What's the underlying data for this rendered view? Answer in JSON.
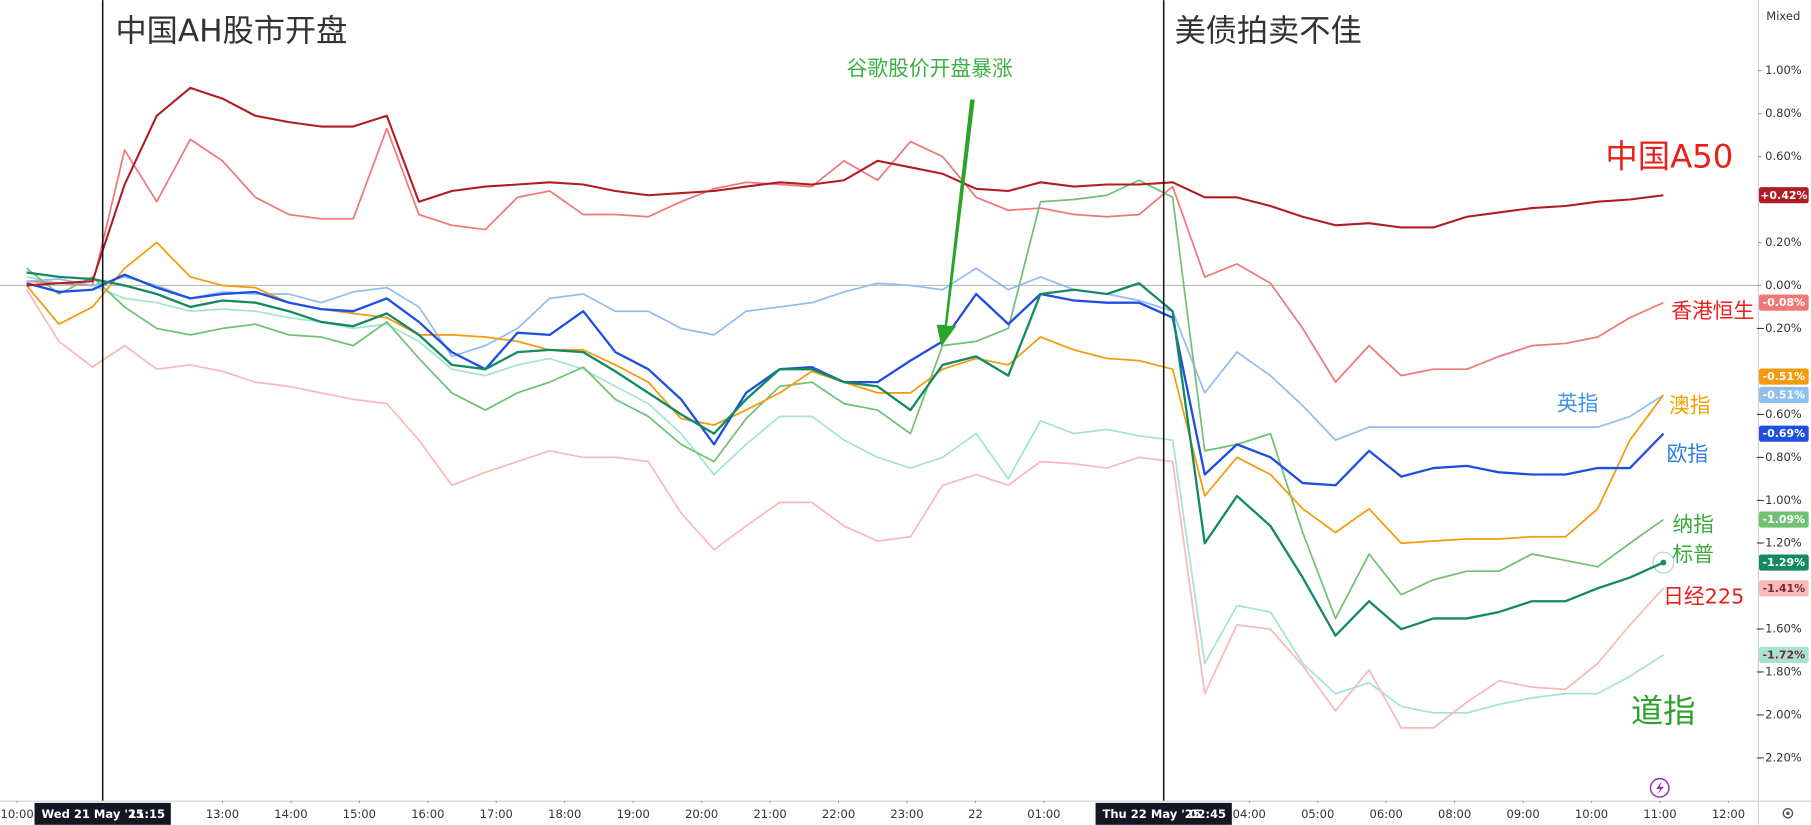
{
  "chart_data": {
    "type": "line",
    "corner_label": "Mixed",
    "x": [
      0.14,
      0.61,
      1.1,
      1.57,
      2.04,
      2.53,
      3.0,
      3.48,
      3.97,
      4.44,
      4.91,
      5.4,
      5.87,
      6.35,
      6.84,
      7.31,
      7.78,
      8.27,
      8.74,
      9.22,
      9.7,
      10.18,
      10.65,
      11.14,
      11.61,
      12.08,
      12.57,
      13.05,
      13.52,
      14.01,
      14.48,
      14.95,
      15.44,
      15.92,
      16.39,
      16.88,
      17.35,
      17.82,
      18.31,
      18.78,
      19.26,
      19.75,
      20.22,
      20.69,
      21.18,
      21.65,
      22.13,
      22.62,
      23.09,
      23.56,
      24.05
    ],
    "xlim": [
      -0.25,
      25.43
    ],
    "xticks": [
      {
        "value": 0,
        "label": "10:00"
      },
      {
        "value": 3,
        "label": "13:00"
      },
      {
        "value": 4,
        "label": "14:00"
      },
      {
        "value": 5,
        "label": "15:00"
      },
      {
        "value": 6,
        "label": "16:00"
      },
      {
        "value": 7,
        "label": "17:00"
      },
      {
        "value": 8,
        "label": "18:00"
      },
      {
        "value": 9,
        "label": "19:00"
      },
      {
        "value": 10,
        "label": "20:00"
      },
      {
        "value": 11,
        "label": "21:00"
      },
      {
        "value": 12,
        "label": "22:00"
      },
      {
        "value": 13,
        "label": "23:00"
      },
      {
        "value": 14,
        "label": "22"
      },
      {
        "value": 15,
        "label": "01:00"
      },
      {
        "value": 18,
        "label": "04:00"
      },
      {
        "value": 19,
        "label": "05:00"
      },
      {
        "value": 20,
        "label": "06:00"
      },
      {
        "value": 21,
        "label": "08:00"
      },
      {
        "value": 22,
        "label": "09:00"
      },
      {
        "value": 23,
        "label": "10:00"
      },
      {
        "value": 24,
        "label": "11:00"
      },
      {
        "value": 25,
        "label": "12:00"
      }
    ],
    "ylim": [
      -2.398,
      1.328
    ],
    "yticks": [
      {
        "value": 1.0,
        "label": "1.00%"
      },
      {
        "value": 0.8,
        "label": "0.80%"
      },
      {
        "value": 0.6,
        "label": "0.60%"
      },
      {
        "value": 0.2,
        "label": "0.20%"
      },
      {
        "value": 0,
        "label": "0.00%"
      },
      {
        "value": -0.2,
        "label": "−0.20%"
      },
      {
        "value": -0.6,
        "label": "−0.60%"
      },
      {
        "value": -0.8,
        "label": "−0.80%"
      },
      {
        "value": -1.0,
        "label": "−1.00%"
      },
      {
        "value": -1.2,
        "label": "−1.20%"
      },
      {
        "value": -1.6,
        "label": "−1.60%"
      },
      {
        "value": -1.8,
        "label": "−1.80%"
      },
      {
        "value": -2.0,
        "label": "−2.00%"
      },
      {
        "value": -2.2,
        "label": "−2.20%"
      }
    ],
    "grid": false,
    "event_lines": [
      {
        "x": 1.25,
        "date": "Wed 21 May '25",
        "time": "11:15",
        "note": "中国AH股市开盘"
      },
      {
        "x": 16.75,
        "date": "Thu 22 May '25",
        "time": "02:45",
        "note": "美债拍卖不佳"
      }
    ],
    "arrow_note": "谷歌股价开盘暴涨",
    "series": [
      {
        "name": "道指",
        "color": "#a6e3d5",
        "label_color": "#2ea02e",
        "end_label": "-1.72%",
        "values": [
          0.04,
          0.01,
          0,
          -0.06,
          -0.08,
          -0.12,
          -0.11,
          -0.12,
          -0.15,
          -0.17,
          -0.2,
          -0.18,
          -0.26,
          -0.39,
          -0.42,
          -0.37,
          -0.34,
          -0.39,
          -0.47,
          -0.55,
          -0.69,
          -0.88,
          -0.74,
          -0.61,
          -0.61,
          -0.72,
          -0.8,
          -0.85,
          -0.8,
          -0.69,
          -0.9,
          -0.63,
          -0.69,
          -0.67,
          -0.7,
          -0.72,
          -1.76,
          -1.49,
          -1.52,
          -1.76,
          -1.9,
          -1.85,
          -1.96,
          -1.99,
          -1.99,
          -1.95,
          -1.92,
          -1.9,
          -1.9,
          -1.82,
          -1.72
        ]
      },
      {
        "name": "日经225",
        "color": "#f9b9b9",
        "label_color": "#e8201a",
        "end_label": "-1.41%",
        "values": [
          -0.02,
          -0.26,
          -0.38,
          -0.28,
          -0.39,
          -0.37,
          -0.4,
          -0.45,
          -0.47,
          -0.5,
          -0.53,
          -0.55,
          -0.72,
          -0.93,
          -0.87,
          -0.82,
          -0.77,
          -0.8,
          -0.8,
          -0.82,
          -1.06,
          -1.23,
          -1.12,
          -1.01,
          -1.01,
          -1.12,
          -1.19,
          -1.17,
          -0.93,
          -0.88,
          -0.93,
          -0.82,
          -0.83,
          -0.85,
          -0.8,
          -0.82,
          -1.9,
          -1.58,
          -1.6,
          -1.77,
          -1.98,
          -1.79,
          -2.06,
          -2.06,
          -1.94,
          -1.84,
          -1.87,
          -1.88,
          -1.76,
          -1.58,
          -1.41
        ]
      },
      {
        "name": "香港恒生",
        "color": "#f07878",
        "label_color": "#e8201a",
        "end_label": "-0.08%",
        "values": [
          0.02,
          0.01,
          0,
          0.63,
          0.39,
          0.68,
          0.58,
          0.41,
          0.33,
          0.31,
          0.31,
          0.73,
          0.33,
          0.28,
          0.26,
          0.41,
          0.44,
          0.33,
          0.33,
          0.32,
          0.39,
          0.45,
          0.48,
          0.47,
          0.46,
          0.58,
          0.49,
          0.67,
          0.6,
          0.41,
          0.35,
          0.36,
          0.33,
          0.32,
          0.33,
          0.46,
          0.04,
          0.1,
          0.01,
          -0.2,
          -0.45,
          -0.28,
          -0.42,
          -0.39,
          -0.39,
          -0.33,
          -0.28,
          -0.27,
          -0.24,
          -0.15,
          -0.08
        ]
      },
      {
        "name": "英指",
        "color": "#8fbff0",
        "label_color": "#3e94e6",
        "end_label": "-0.51%",
        "values": [
          0.02,
          0.03,
          0,
          0.04,
          0,
          -0.06,
          -0.03,
          -0.04,
          -0.04,
          -0.08,
          -0.03,
          -0.01,
          -0.1,
          -0.33,
          -0.28,
          -0.2,
          -0.06,
          -0.04,
          -0.12,
          -0.12,
          -0.2,
          -0.23,
          -0.12,
          -0.1,
          -0.08,
          -0.03,
          0.01,
          0,
          -0.02,
          0.08,
          -0.02,
          0.04,
          -0.02,
          -0.04,
          -0.07,
          -0.12,
          -0.5,
          -0.31,
          -0.42,
          -0.56,
          -0.72,
          -0.66,
          -0.66,
          -0.66,
          -0.66,
          -0.66,
          -0.66,
          -0.66,
          -0.66,
          -0.61,
          -0.51
        ]
      },
      {
        "name": "纳指",
        "color": "#72c172",
        "label_color": "#3aa83a",
        "end_label": "-1.09%",
        "values": [
          0.08,
          -0.04,
          0.04,
          -0.1,
          -0.2,
          -0.23,
          -0.2,
          -0.18,
          -0.23,
          -0.24,
          -0.28,
          -0.17,
          -0.34,
          -0.5,
          -0.58,
          -0.5,
          -0.45,
          -0.38,
          -0.53,
          -0.61,
          -0.74,
          -0.82,
          -0.62,
          -0.47,
          -0.45,
          -0.55,
          -0.58,
          -0.69,
          -0.28,
          -0.26,
          -0.2,
          0.39,
          0.4,
          0.42,
          0.49,
          0.41,
          -0.77,
          -0.74,
          -0.69,
          -1.15,
          -1.55,
          -1.25,
          -1.44,
          -1.37,
          -1.33,
          -1.33,
          -1.25,
          -1.28,
          -1.31,
          -1.2,
          -1.09
        ]
      },
      {
        "name": "澳指",
        "color": "#f59a0c",
        "label_color": "#f0a000",
        "end_label": "-0.51%",
        "values": [
          0,
          -0.18,
          -0.1,
          0.08,
          0.2,
          0.04,
          0,
          -0.01,
          -0.08,
          -0.11,
          -0.13,
          -0.15,
          -0.23,
          -0.23,
          -0.24,
          -0.26,
          -0.3,
          -0.3,
          -0.37,
          -0.45,
          -0.62,
          -0.65,
          -0.58,
          -0.5,
          -0.4,
          -0.45,
          -0.5,
          -0.5,
          -0.39,
          -0.34,
          -0.37,
          -0.24,
          -0.3,
          -0.34,
          -0.35,
          -0.39,
          -0.98,
          -0.8,
          -0.88,
          -1.04,
          -1.15,
          -1.04,
          -1.2,
          -1.19,
          -1.18,
          -1.18,
          -1.17,
          -1.17,
          -1.04,
          -0.72,
          -0.51
        ]
      },
      {
        "name": "欧指",
        "color": "#1f4fe0",
        "label_color": "#2b7de0",
        "end_label": "-0.69%",
        "values": [
          0.01,
          -0.03,
          -0.02,
          0.05,
          -0.01,
          -0.06,
          -0.04,
          -0.03,
          -0.08,
          -0.11,
          -0.12,
          -0.06,
          -0.17,
          -0.31,
          -0.39,
          -0.22,
          -0.23,
          -0.12,
          -0.31,
          -0.39,
          -0.53,
          -0.74,
          -0.5,
          -0.39,
          -0.38,
          -0.45,
          -0.45,
          -0.35,
          -0.26,
          -0.04,
          -0.18,
          -0.04,
          -0.07,
          -0.08,
          -0.08,
          -0.15,
          -0.88,
          -0.74,
          -0.8,
          -0.92,
          -0.93,
          -0.77,
          -0.89,
          -0.85,
          -0.84,
          -0.87,
          -0.88,
          -0.88,
          -0.85,
          -0.85,
          -0.69
        ]
      },
      {
        "name": "标普",
        "color": "#138a63",
        "label_color": "#3aa83a",
        "end_label": "-1.29%",
        "values": [
          0.06,
          0.04,
          0.03,
          0,
          -0.04,
          -0.1,
          -0.07,
          -0.08,
          -0.12,
          -0.17,
          -0.19,
          -0.13,
          -0.23,
          -0.37,
          -0.39,
          -0.31,
          -0.3,
          -0.31,
          -0.4,
          -0.5,
          -0.6,
          -0.69,
          -0.53,
          -0.39,
          -0.39,
          -0.45,
          -0.47,
          -0.58,
          -0.37,
          -0.33,
          -0.42,
          -0.04,
          -0.02,
          -0.04,
          0.01,
          -0.12,
          -1.2,
          -0.98,
          -1.12,
          -1.36,
          -1.63,
          -1.47,
          -1.6,
          -1.55,
          -1.55,
          -1.52,
          -1.47,
          -1.47,
          -1.41,
          -1.36,
          -1.29
        ]
      },
      {
        "name": "中国A50",
        "color": "#b01c24",
        "label_color": "#e8201a",
        "end_label": "+0.42%",
        "values": [
          0,
          0.01,
          0.02,
          0.47,
          0.79,
          0.92,
          0.87,
          0.79,
          0.76,
          0.74,
          0.74,
          0.79,
          0.39,
          0.44,
          0.46,
          0.47,
          0.48,
          0.47,
          0.44,
          0.42,
          0.43,
          0.44,
          0.46,
          0.48,
          0.47,
          0.49,
          0.58,
          0.55,
          0.52,
          0.45,
          0.44,
          0.48,
          0.46,
          0.47,
          0.47,
          0.48,
          0.41,
          0.41,
          0.37,
          0.32,
          0.28,
          0.29,
          0.27,
          0.27,
          0.32,
          0.34,
          0.36,
          0.37,
          0.39,
          0.4,
          0.42
        ]
      }
    ]
  }
}
